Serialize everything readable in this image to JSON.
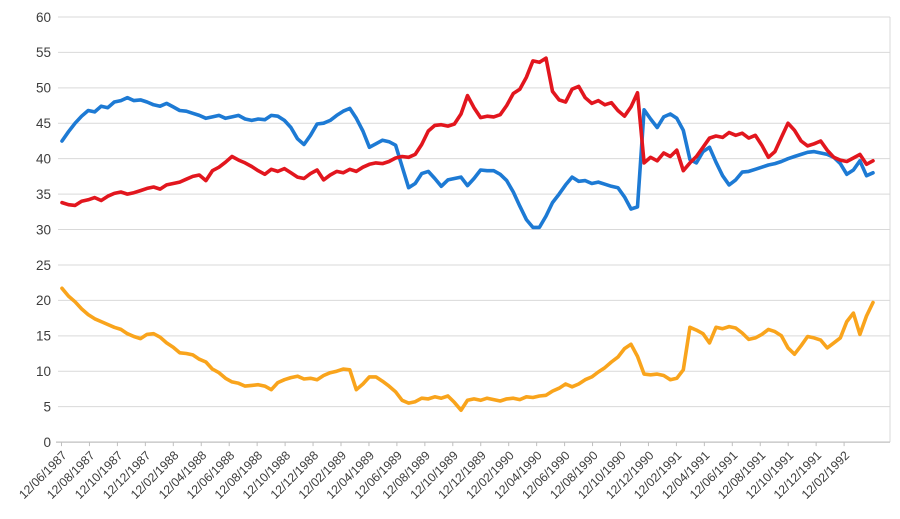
{
  "chart_data": {
    "type": "line",
    "title": "",
    "xlabel": "",
    "ylabel": "",
    "ylim": [
      0,
      60
    ],
    "grid": true,
    "legend": "none",
    "y_ticks": [
      0,
      5,
      10,
      15,
      20,
      25,
      30,
      35,
      40,
      45,
      50,
      55,
      60
    ],
    "x_tick_labels": [
      "12/06/1987",
      "12/08/1987",
      "12/10/1987",
      "12/12/1987",
      "12/02/1988",
      "12/04/1988",
      "12/06/1988",
      "12/08/1988",
      "12/10/1988",
      "12/12/1988",
      "12/02/1989",
      "12/04/1989",
      "12/06/1989",
      "12/08/1989",
      "12/10/1989",
      "12/12/1989",
      "12/02/1990",
      "12/04/1990",
      "12/06/1990",
      "12/08/1990",
      "12/10/1990",
      "12/12/1990",
      "12/02/1991",
      "12/04/1991",
      "12/06/1991",
      "12/08/1991",
      "12/10/1991",
      "12/12/1991",
      "12/02/1992"
    ],
    "series": [
      {
        "name": "blue-series",
        "color": "#1D7AD4",
        "values": [
          42.5,
          43.8,
          45.0,
          46.0,
          46.8,
          46.6,
          47.4,
          47.2,
          48.0,
          48.2,
          48.6,
          48.2,
          48.3,
          48.0,
          47.6,
          47.4,
          47.8,
          47.3,
          46.8,
          46.7,
          46.4,
          46.1,
          45.7,
          45.9,
          46.1,
          45.7,
          45.9,
          46.1,
          45.6,
          45.4,
          45.6,
          45.5,
          46.1,
          46.0,
          45.4,
          44.4,
          42.8,
          42.0,
          43.3,
          44.9,
          45.0,
          45.4,
          46.1,
          46.7,
          47.1,
          45.7,
          43.9,
          41.6,
          42.1,
          42.6,
          42.4,
          41.9,
          38.9,
          35.9,
          36.5,
          37.9,
          38.2,
          37.2,
          36.1,
          37.0,
          37.2,
          37.4,
          36.2,
          37.2,
          38.4,
          38.3,
          38.3,
          37.8,
          36.9,
          35.3,
          33.3,
          31.4,
          30.3,
          30.3,
          31.9,
          33.8,
          35.0,
          36.3,
          37.4,
          36.8,
          36.9,
          36.5,
          36.7,
          36.4,
          36.1,
          35.9,
          34.6,
          32.9,
          33.2,
          46.9,
          45.6,
          44.4,
          45.9,
          46.3,
          45.7,
          44.0,
          39.9,
          39.4,
          41.0,
          41.6,
          39.5,
          37.6,
          36.3,
          37.0,
          38.1,
          38.2,
          38.5,
          38.8,
          39.1,
          39.3,
          39.6,
          40.0,
          40.3,
          40.6,
          40.9,
          41.0,
          40.8,
          40.6,
          40.2,
          39.3,
          37.8,
          38.4,
          39.7,
          37.6,
          38.0
        ]
      },
      {
        "name": "red-series",
        "color": "#E2161E",
        "values": [
          33.8,
          33.5,
          33.4,
          34.0,
          34.2,
          34.5,
          34.1,
          34.7,
          35.1,
          35.3,
          35.0,
          35.2,
          35.5,
          35.8,
          36.0,
          35.7,
          36.3,
          36.5,
          36.7,
          37.1,
          37.5,
          37.7,
          36.9,
          38.3,
          38.8,
          39.5,
          40.3,
          39.8,
          39.4,
          38.9,
          38.3,
          37.8,
          38.5,
          38.2,
          38.6,
          38.0,
          37.4,
          37.2,
          37.9,
          38.4,
          37.0,
          37.7,
          38.2,
          38.0,
          38.5,
          38.2,
          38.8,
          39.2,
          39.4,
          39.3,
          39.6,
          40.1,
          40.3,
          40.2,
          40.6,
          42.0,
          43.9,
          44.7,
          44.8,
          44.6,
          44.9,
          46.3,
          48.9,
          47.2,
          45.8,
          46.0,
          45.9,
          46.2,
          47.5,
          49.2,
          49.8,
          51.5,
          53.8,
          53.6,
          54.2,
          49.5,
          48.3,
          48.0,
          49.8,
          50.2,
          48.6,
          47.8,
          48.2,
          47.6,
          47.9,
          46.8,
          46.0,
          47.3,
          49.3,
          39.4,
          40.2,
          39.7,
          40.8,
          40.3,
          41.2,
          38.3,
          39.4,
          40.3,
          41.6,
          42.9,
          43.2,
          43.0,
          43.7,
          43.3,
          43.6,
          42.9,
          43.3,
          41.9,
          40.2,
          41.0,
          43.0,
          45.0,
          44.0,
          42.5,
          41.8,
          42.1,
          42.5,
          41.2,
          40.2,
          39.8,
          39.6,
          40.1,
          40.6,
          39.2,
          39.7
        ]
      },
      {
        "name": "orange-series",
        "color": "#F9A41C",
        "values": [
          21.7,
          20.6,
          19.8,
          18.8,
          18.0,
          17.4,
          17.0,
          16.6,
          16.2,
          15.9,
          15.3,
          14.9,
          14.6,
          15.2,
          15.3,
          14.8,
          14.0,
          13.4,
          12.6,
          12.5,
          12.3,
          11.7,
          11.3,
          10.3,
          9.8,
          9.0,
          8.5,
          8.3,
          7.9,
          8.0,
          8.1,
          7.9,
          7.4,
          8.4,
          8.8,
          9.1,
          9.3,
          8.9,
          9.0,
          8.8,
          9.4,
          9.8,
          10.0,
          10.3,
          10.2,
          7.4,
          8.2,
          9.2,
          9.2,
          8.6,
          7.9,
          7.1,
          5.9,
          5.5,
          5.7,
          6.2,
          6.1,
          6.4,
          6.2,
          6.5,
          5.6,
          4.5,
          5.9,
          6.1,
          5.9,
          6.2,
          6.0,
          5.8,
          6.1,
          6.2,
          6.0,
          6.4,
          6.3,
          6.5,
          6.6,
          7.2,
          7.6,
          8.2,
          7.8,
          8.2,
          8.8,
          9.2,
          9.9,
          10.5,
          11.3,
          12.0,
          13.2,
          13.8,
          12.1,
          9.6,
          9.5,
          9.6,
          9.4,
          8.8,
          9.0,
          10.2,
          16.2,
          15.8,
          15.3,
          14.0,
          16.2,
          16.0,
          16.3,
          16.1,
          15.4,
          14.5,
          14.7,
          15.2,
          15.9,
          15.6,
          15.0,
          13.3,
          12.4,
          13.6,
          14.9,
          14.7,
          14.4,
          13.3,
          14.0,
          14.7,
          17.0,
          18.2,
          15.2,
          17.8,
          19.7
        ]
      }
    ]
  },
  "style": {
    "background": "#FFFFFF",
    "grid_color": "#D9D9D9",
    "axis_color": "#BFBFBF",
    "label_color": "#3D3D3D"
  }
}
